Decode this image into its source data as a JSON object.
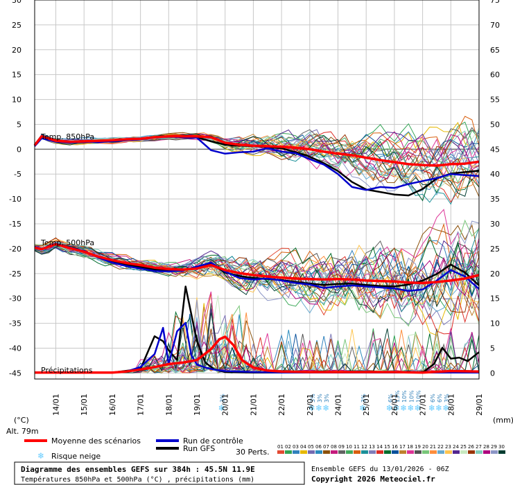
{
  "chart_data": {
    "type": "line",
    "title": "Diagramme des ensembles GEFS sur 384h : 45.5N 11.9E",
    "subtitle": "Températures 850hPa et 500hPa (°C) , précipitations (mm)",
    "run_info": "Ensemble GEFS du 13/01/2026 - 06Z",
    "copyright": "Copyright 2026 Meteociel.fr",
    "altitude": "Alt. 79m",
    "y_left_unit": "(°C)",
    "y_right_unit": "(mm)",
    "y_left_ticks": [
      "30",
      "25",
      "20",
      "15",
      "10",
      "5",
      "0",
      "-5",
      "-10",
      "-15",
      "-20",
      "-25",
      "-30",
      "-35",
      "-40",
      "-45"
    ],
    "y_right_ticks": [
      "75",
      "70",
      "65",
      "60",
      "55",
      "50",
      "45",
      "40",
      "35",
      "30",
      "25",
      "20",
      "15",
      "10",
      "5",
      "0"
    ],
    "ylim_left": [
      -45,
      30
    ],
    "ylim_right": [
      0,
      75
    ],
    "x_ticks": [
      "14/01",
      "15/01",
      "16/01",
      "17/01",
      "18/01",
      "19/01",
      "20/01",
      "21/01",
      "22/01",
      "23/01",
      "24/01",
      "25/01",
      "26/01",
      "27/01",
      "28/01",
      "29/01"
    ],
    "panel_labels": {
      "t850": "Temp. 850hPa",
      "t500": "Temp. 500hPa",
      "precip": "Précipitations"
    },
    "legend": {
      "mean": "Moyenne des scénarios",
      "control": "Run de contrôle",
      "gfs": "Run GFS",
      "snow": "Risque neige",
      "perts": "30 Perts."
    },
    "pert_labels": [
      "01",
      "02",
      "03",
      "04",
      "05",
      "06",
      "07",
      "08",
      "09",
      "10",
      "11",
      "12",
      "13",
      "14",
      "15",
      "16",
      "17",
      "18",
      "19",
      "20",
      "21",
      "22",
      "23",
      "24",
      "25",
      "26",
      "27",
      "28",
      "29",
      "30"
    ],
    "pert_colors": [
      "#e34a33",
      "#31a354",
      "#3182bd",
      "#e6b800",
      "#756bb1",
      "#2b8cbe",
      "#8c510a",
      "#c51b7d",
      "#636363",
      "#41ab5d",
      "#d95f0e",
      "#1c9099",
      "#807dba",
      "#de2d26",
      "#006d2c",
      "#08519c",
      "#bf812d",
      "#dd3497",
      "#525252",
      "#78c679",
      "#fd8d3c",
      "#67a9cf",
      "#fec44f",
      "#54278f",
      "#c7e9c0",
      "#993404",
      "#7fcdbb",
      "#ae017e",
      "#8c96c6",
      "#003c30"
    ],
    "colors": {
      "mean": "#ff0000",
      "control": "#0000cc",
      "gfs": "#000000",
      "snow": "#66ccff"
    },
    "snow_risk": [
      {
        "x": 19.9,
        "pcts": [
          "3%"
        ]
      },
      {
        "x": 23.1,
        "pcts": [
          "3%"
        ]
      },
      {
        "x": 23.35,
        "pcts": [
          "3%"
        ]
      },
      {
        "x": 23.6,
        "pcts": [
          "3%"
        ]
      },
      {
        "x": 24.9,
        "pcts": [
          "3%"
        ]
      },
      {
        "x": 25.85,
        "pcts": [
          "6%"
        ]
      },
      {
        "x": 26.1,
        "pcts": [
          "13%"
        ]
      },
      {
        "x": 26.35,
        "pcts": [
          "10%"
        ]
      },
      {
        "x": 26.6,
        "pcts": [
          "10%"
        ]
      },
      {
        "x": 26.85,
        "pcts": [
          "10%"
        ]
      },
      {
        "x": 27.35,
        "pcts": [
          "6%"
        ]
      },
      {
        "x": 27.6,
        "pcts": [
          "6%"
        ]
      },
      {
        "x": 27.85,
        "pcts": [
          "3%"
        ]
      }
    ],
    "series": [
      {
        "name": "Moyenne des scénarios",
        "panel": "t850",
        "x": [
          13.25,
          13.5,
          14,
          14.5,
          15,
          15.5,
          16,
          16.5,
          17,
          17.5,
          18,
          18.5,
          19,
          19.5,
          20,
          20.5,
          21,
          21.5,
          22,
          22.5,
          23,
          23.5,
          24,
          24.5,
          25,
          25.5,
          26,
          26.5,
          27,
          27.5,
          28,
          28.5,
          29
        ],
        "values": [
          0.8,
          2.6,
          1.7,
          1.5,
          1.6,
          1.7,
          1.8,
          2.0,
          2.1,
          2.4,
          2.6,
          2.6,
          2.6,
          2.4,
          1.3,
          0.9,
          0.7,
          0.6,
          0.5,
          0.3,
          0.0,
          -0.5,
          -0.9,
          -1.2,
          -1.7,
          -2.2,
          -2.6,
          -3.0,
          -3.2,
          -3.3,
          -3.0,
          -2.9,
          -2.5
        ]
      },
      {
        "name": "Run de contrôle",
        "panel": "t850",
        "x": [
          13.25,
          13.5,
          14,
          14.5,
          15,
          15.5,
          16,
          16.5,
          17,
          17.5,
          18,
          18.5,
          19,
          19.5,
          20,
          20.5,
          21,
          21.5,
          22,
          22.5,
          23,
          23.5,
          24,
          24.5,
          25,
          25.5,
          26,
          26.5,
          27,
          27.5,
          28,
          28.5,
          29
        ],
        "values": [
          0.6,
          2.2,
          1.5,
          1.3,
          1.5,
          1.4,
          1.6,
          1.8,
          2.0,
          2.3,
          2.5,
          2.4,
          2.3,
          -0.2,
          -0.9,
          -0.6,
          -0.5,
          0.2,
          -0.5,
          -0.8,
          -2.0,
          -3.1,
          -5.0,
          -7.6,
          -8.2,
          -7.6,
          -7.8,
          -7.0,
          -6.4,
          -5.8,
          -5.0,
          -5.2,
          -5.4
        ]
      },
      {
        "name": "Run GFS",
        "panel": "t850",
        "x": [
          13.25,
          13.5,
          14,
          14.5,
          15,
          15.5,
          16,
          16.5,
          17,
          17.5,
          18,
          18.5,
          19,
          19.5,
          20,
          20.5,
          21,
          21.5,
          22,
          22.5,
          23,
          23.5,
          24,
          24.5,
          25,
          25.5,
          26,
          26.5,
          27,
          27.5,
          28,
          28.5,
          29
        ],
        "values": [
          0.7,
          2.4,
          1.6,
          1.4,
          1.5,
          1.6,
          1.7,
          1.9,
          2.1,
          2.4,
          2.5,
          2.5,
          2.4,
          1.6,
          0.9,
          0.7,
          0.6,
          0.4,
          0.2,
          -0.6,
          -1.5,
          -2.8,
          -4.4,
          -6.6,
          -8.1,
          -8.6,
          -9.1,
          -9.3,
          -8.0,
          -5.9,
          -4.9,
          -4.6,
          -4.3
        ]
      },
      {
        "name": "Moyenne des scénarios",
        "panel": "t500",
        "x": [
          13.25,
          13.5,
          14,
          14.5,
          15,
          15.5,
          16,
          16.5,
          17,
          17.5,
          18,
          18.5,
          19,
          19.5,
          20,
          20.5,
          21,
          21.5,
          22,
          22.5,
          23,
          23.5,
          24,
          24.5,
          25,
          25.5,
          26,
          26.5,
          27,
          27.5,
          28,
          28.5,
          29
        ],
        "values": [
          -19.8,
          -20.1,
          -19.1,
          -19.9,
          -20.6,
          -21.6,
          -22.3,
          -22.9,
          -23.3,
          -23.8,
          -24.1,
          -24.2,
          -24.0,
          -23.3,
          -24.3,
          -24.9,
          -25.3,
          -25.6,
          -25.8,
          -26.0,
          -26.1,
          -26.2,
          -26.1,
          -26.2,
          -26.4,
          -26.5,
          -26.6,
          -26.8,
          -26.9,
          -26.7,
          -26.4,
          -26.0,
          -25.3
        ]
      },
      {
        "name": "Run de contrôle",
        "panel": "t500",
        "x": [
          13.25,
          13.5,
          14,
          14.5,
          15,
          15.5,
          16,
          16.5,
          17,
          17.5,
          18,
          18.5,
          19,
          19.5,
          20,
          20.5,
          21,
          21.5,
          22,
          22.5,
          23,
          23.5,
          24,
          24.5,
          25,
          25.5,
          26,
          26.5,
          27,
          27.5,
          28,
          28.5,
          29
        ],
        "values": [
          -19.6,
          -20.0,
          -19.0,
          -19.8,
          -20.4,
          -21.8,
          -22.8,
          -23.5,
          -24.0,
          -24.5,
          -24.6,
          -24.4,
          -23.6,
          -22.8,
          -24.6,
          -25.9,
          -26.2,
          -26.0,
          -26.4,
          -26.9,
          -27.2,
          -27.9,
          -27.6,
          -27.4,
          -27.6,
          -27.8,
          -28.0,
          -28.5,
          -28.2,
          -26.4,
          -24.3,
          -25.6,
          -28.1
        ]
      },
      {
        "name": "Run GFS",
        "panel": "t500",
        "x": [
          13.25,
          13.5,
          14,
          14.5,
          15,
          15.5,
          16,
          16.5,
          17,
          17.5,
          18,
          18.5,
          19,
          19.5,
          20,
          20.5,
          21,
          21.5,
          22,
          22.5,
          23,
          23.5,
          24,
          24.5,
          25,
          25.5,
          26,
          26.5,
          27,
          27.5,
          28,
          28.5,
          29
        ],
        "values": [
          -19.7,
          -20.0,
          -19.1,
          -19.9,
          -20.5,
          -21.7,
          -22.6,
          -23.2,
          -23.7,
          -24.2,
          -24.4,
          -24.3,
          -23.8,
          -23.0,
          -24.8,
          -25.5,
          -25.9,
          -26.1,
          -26.3,
          -26.7,
          -27.0,
          -27.3,
          -27.1,
          -27.0,
          -27.3,
          -27.5,
          -27.6,
          -27.2,
          -26.4,
          -25.1,
          -23.2,
          -24.8,
          -27.4
        ]
      },
      {
        "name": "Moyenne des scénarios",
        "panel": "precip",
        "x": [
          13.25,
          14,
          15,
          16,
          16.5,
          17,
          17.5,
          18,
          18.5,
          19,
          19.5,
          19.8,
          20,
          20.3,
          20.6,
          21,
          21.5,
          22,
          23,
          24,
          25,
          26,
          27,
          28,
          29
        ],
        "values": [
          0.1,
          0.1,
          0.1,
          0.1,
          0.3,
          0.7,
          1.2,
          1.8,
          2.1,
          2.6,
          4.8,
          6.8,
          7.3,
          5.6,
          2.6,
          1.1,
          0.5,
          0.3,
          0.2,
          0.2,
          0.2,
          0.2,
          0.1,
          0.4,
          0.3
        ]
      },
      {
        "name": "Run de contrôle",
        "panel": "precip",
        "x": [
          13.25,
          14,
          15,
          16,
          16.5,
          17,
          17.5,
          17.8,
          18,
          18.3,
          18.6,
          18.8,
          19,
          19.3,
          19.6,
          20,
          20.5,
          21,
          22,
          23,
          24,
          25,
          26,
          27,
          28,
          29
        ],
        "values": [
          0.1,
          0.1,
          0.1,
          0.1,
          0.3,
          1.2,
          3.8,
          9.1,
          1.8,
          8.4,
          10.1,
          3.6,
          1.7,
          1.1,
          0.7,
          0.4,
          0.3,
          0.2,
          0.1,
          0.1,
          0.1,
          0.1,
          0.1,
          0.1,
          0.1,
          0.1
        ]
      },
      {
        "name": "Run GFS",
        "panel": "precip",
        "x": [
          13.25,
          14,
          15,
          16,
          17,
          17.5,
          17.8,
          18,
          18.3,
          18.6,
          19,
          19.3,
          19.6,
          20,
          21,
          22,
          23,
          24,
          25,
          26,
          27,
          27.4,
          27.7,
          28,
          28.3,
          28.6,
          29
        ],
        "values": [
          0.1,
          0.1,
          0.1,
          0.1,
          0.8,
          7.4,
          6.4,
          4.6,
          2.6,
          17.4,
          6.4,
          2.1,
          0.8,
          0.2,
          0.1,
          0.1,
          0.1,
          0.1,
          0.1,
          0.1,
          0.1,
          1.8,
          5.1,
          2.9,
          3.1,
          2.4,
          4.2
        ]
      }
    ]
  }
}
